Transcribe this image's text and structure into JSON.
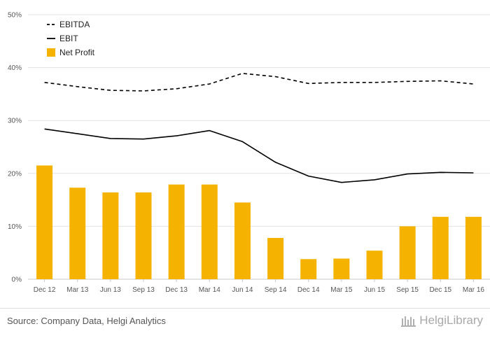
{
  "chart_data": {
    "type": "bar",
    "categories": [
      "Dec 12",
      "Mar 13",
      "Jun 13",
      "Sep 13",
      "Dec 13",
      "Mar 14",
      "Jun 14",
      "Sep 14",
      "Dec 14",
      "Mar 15",
      "Jun 15",
      "Sep 15",
      "Dec 15",
      "Mar 16"
    ],
    "ylim": [
      0,
      50
    ],
    "yticks": [
      "0%",
      "10%",
      "20%",
      "30%",
      "40%",
      "50%"
    ],
    "grid": true,
    "legend_position": "top-left",
    "series": [
      {
        "name": "EBITDA",
        "type": "line",
        "style": "dashed",
        "color": "#000000",
        "values": [
          37.2,
          36.4,
          35.7,
          35.6,
          36.0,
          36.9,
          38.9,
          38.3,
          37.0,
          37.2,
          37.2,
          37.4,
          37.5,
          36.9
        ]
      },
      {
        "name": "EBIT",
        "type": "line",
        "style": "solid",
        "color": "#000000",
        "values": [
          28.4,
          27.5,
          26.6,
          26.5,
          27.1,
          28.1,
          26.0,
          22.1,
          19.5,
          18.3,
          18.8,
          19.9,
          20.2,
          20.1
        ]
      },
      {
        "name": "Net Profit",
        "type": "bar",
        "color": "#F5B300",
        "values": [
          21.5,
          17.3,
          16.4,
          16.4,
          17.9,
          17.9,
          14.5,
          7.8,
          3.8,
          3.9,
          5.4,
          10.0,
          11.8,
          11.8
        ]
      }
    ]
  },
  "footer": {
    "source": "Source: Company Data, Helgi Analytics",
    "logo_text": "HelgiLibrary"
  }
}
